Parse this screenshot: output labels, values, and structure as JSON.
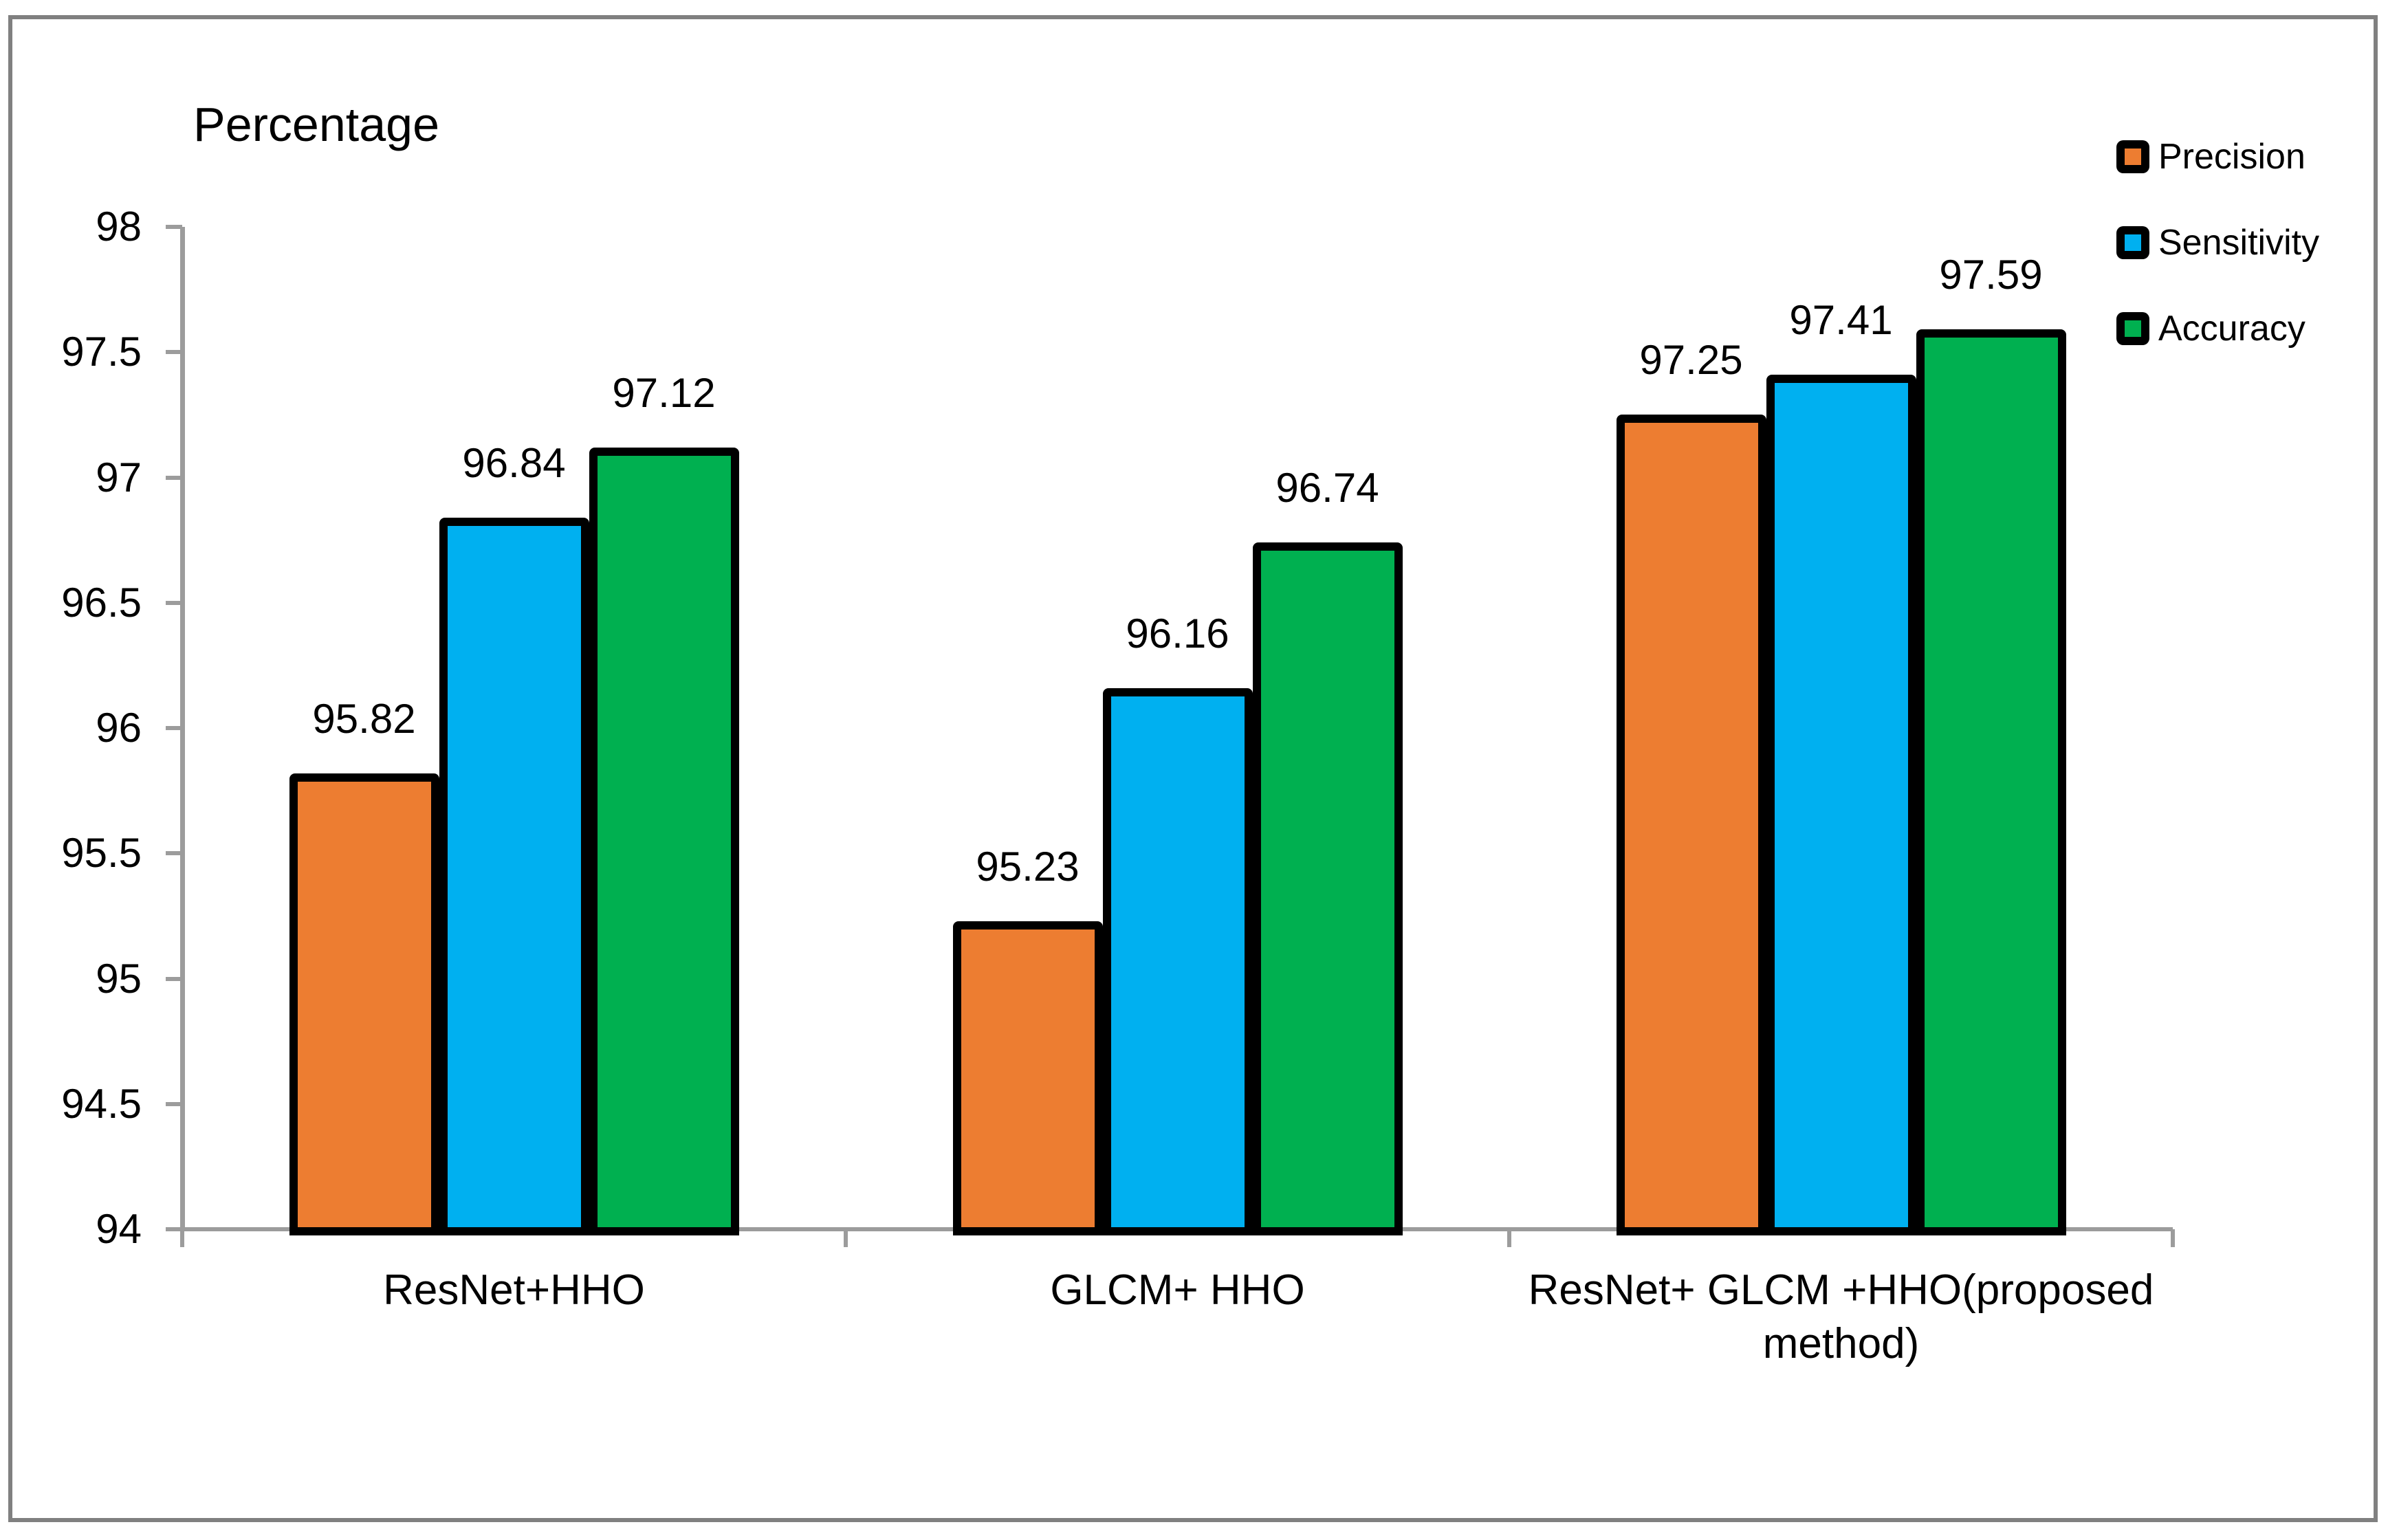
{
  "chart_data": {
    "type": "bar",
    "title": "Percentage",
    "categories": [
      "ResNet+HHO",
      "GLCM+ HHO",
      "ResNet+ GLCM +HHO(proposed method)"
    ],
    "series": [
      {
        "name": "Precision",
        "color": "#ED7D31",
        "values": [
          95.82,
          95.23,
          97.25
        ]
      },
      {
        "name": "Sensitivity",
        "color": "#00B0F0",
        "values": [
          96.84,
          96.16,
          97.41
        ]
      },
      {
        "name": "Accuracy",
        "color": "#00B050",
        "values": [
          97.12,
          96.74,
          97.59
        ]
      }
    ],
    "value_labels": [
      "95.82",
      "96.84",
      "97.12",
      "95.23",
      "96.16",
      "96.74",
      "97.25",
      "97.41",
      "97.59"
    ],
    "ylabel": "",
    "xlabel": "",
    "ylim": [
      94,
      98
    ],
    "ytick_step": 0.5,
    "yticks": [
      "98",
      "97.5",
      "97",
      "96.5",
      "96",
      "95.5",
      "95",
      "94.5",
      "94"
    ],
    "grid": false,
    "legend_position": "top-right",
    "bar_border_color": "#000000"
  },
  "colors": {
    "axis": "#9C9C9C",
    "frame_border": "#808080",
    "background": "#FFFFFF",
    "text": "#000000"
  }
}
